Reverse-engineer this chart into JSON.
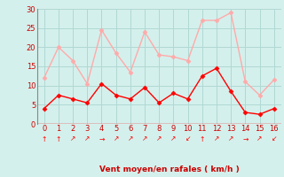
{
  "x": [
    0,
    1,
    2,
    3,
    4,
    5,
    6,
    7,
    8,
    9,
    10,
    11,
    12,
    13,
    14,
    15,
    16
  ],
  "wind_avg": [
    4,
    7.5,
    6.5,
    5.5,
    10.5,
    7.5,
    6.5,
    9.5,
    5.5,
    8,
    6.5,
    12.5,
    14.5,
    8.5,
    3,
    2.5,
    4
  ],
  "wind_gust": [
    12,
    20,
    16.5,
    10.5,
    24.5,
    18.5,
    13.5,
    24,
    18,
    17.5,
    16.5,
    27,
    27,
    29,
    11,
    7.5,
    11.5
  ],
  "avg_color": "#ff0000",
  "gust_color": "#ffaaaa",
  "bg_color": "#d4f0ec",
  "grid_color": "#b0d8d4",
  "xlabel": "Vent moyen/en rafales ( km/h )",
  "xlabel_color": "#cc0000",
  "tick_color": "#cc0000",
  "ylim": [
    0,
    30
  ],
  "yticks": [
    0,
    5,
    10,
    15,
    20,
    25,
    30
  ],
  "xticks": [
    0,
    1,
    2,
    3,
    4,
    5,
    6,
    7,
    8,
    9,
    10,
    11,
    12,
    13,
    14,
    15,
    16
  ],
  "arrows": [
    "↑",
    "↑",
    "↗",
    "↗",
    "→",
    "↗",
    "↗",
    "↗",
    "↗",
    "↗",
    "↙",
    "↑",
    "↗",
    "↗",
    "→",
    "↗",
    "↙"
  ]
}
